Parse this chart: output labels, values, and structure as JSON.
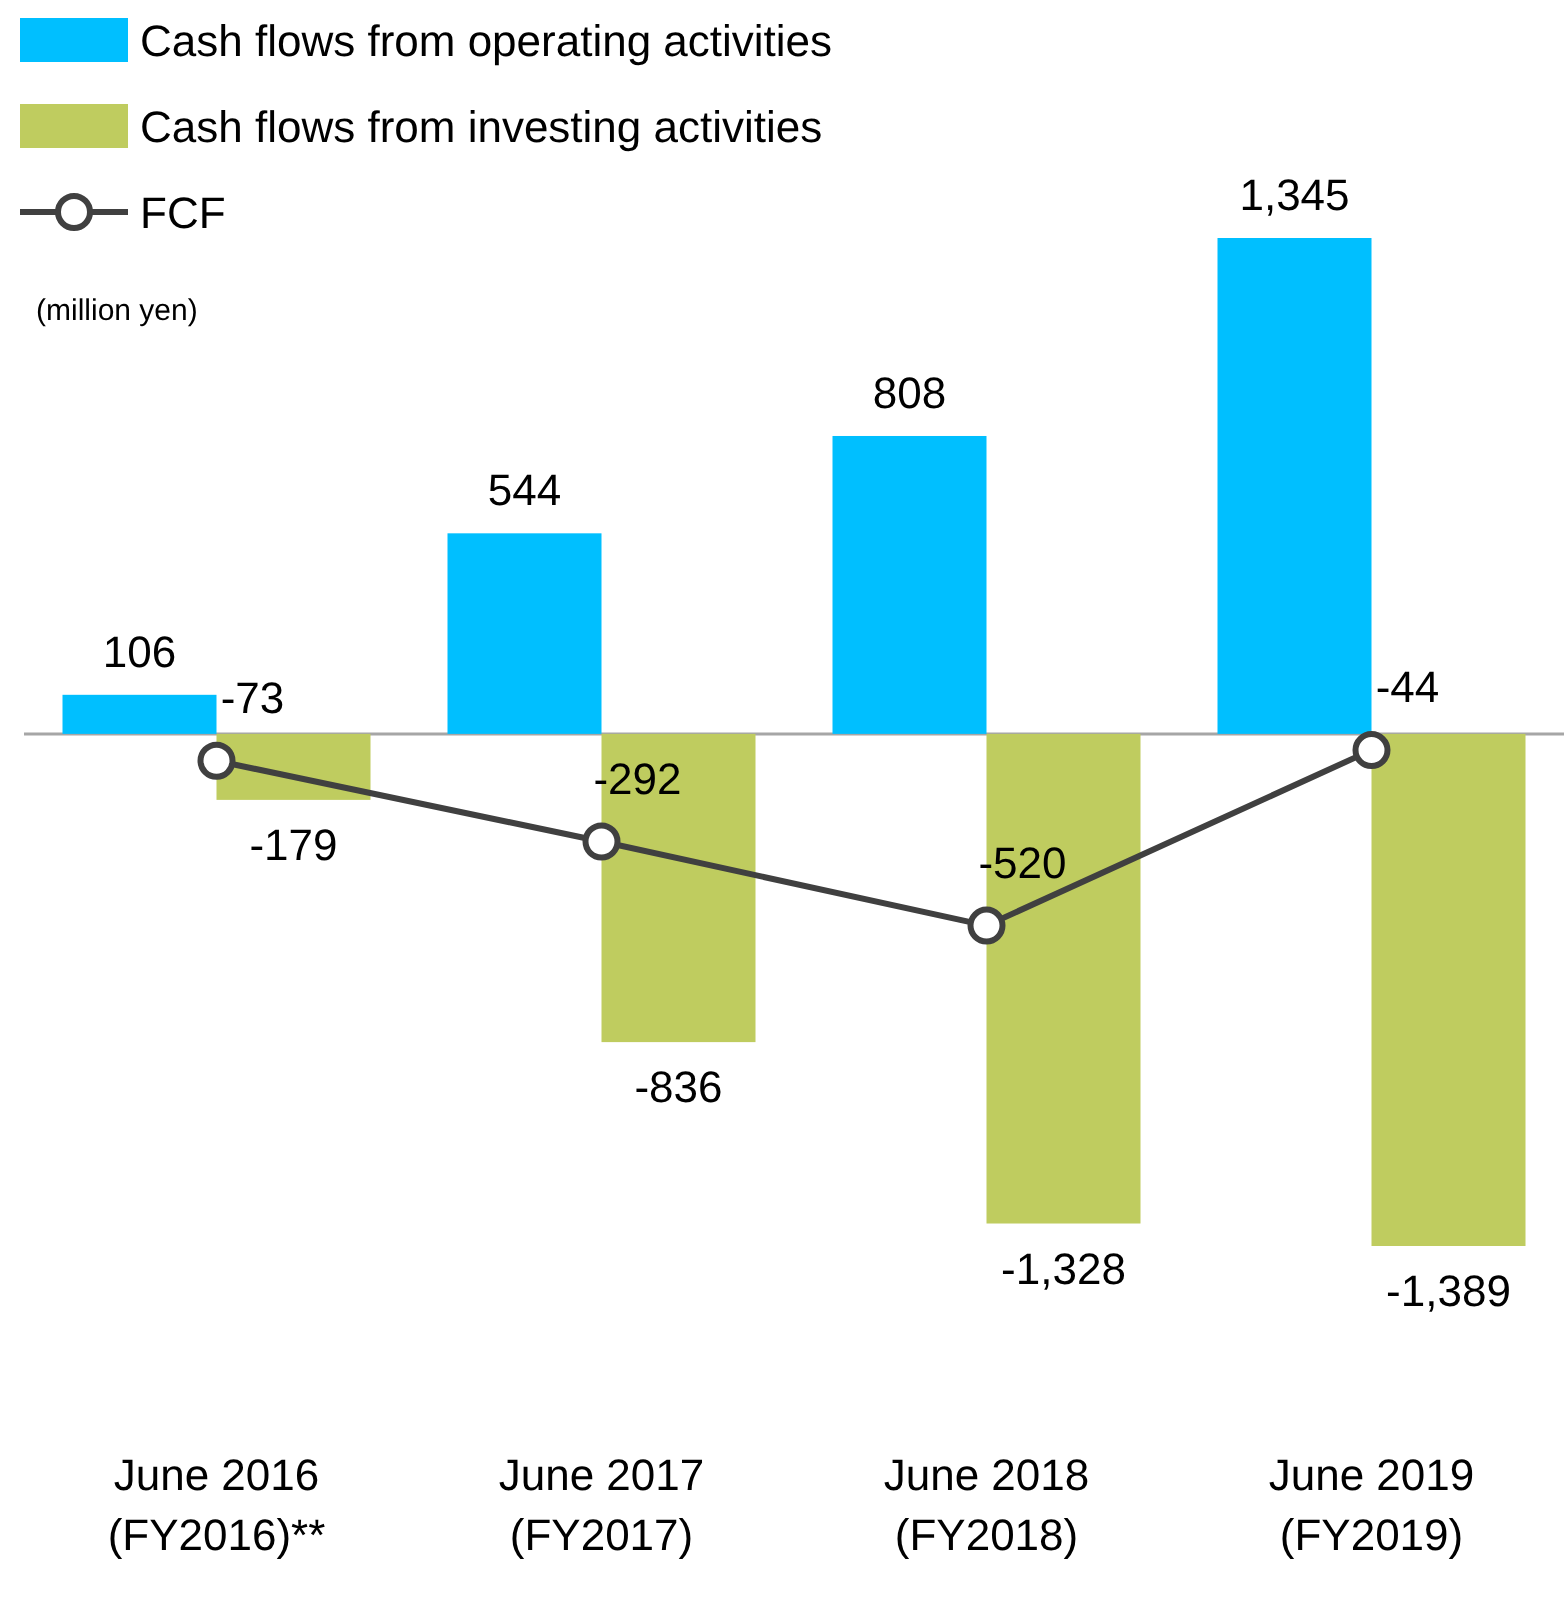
{
  "chart_data": {
    "type": "bar",
    "categories": [
      "June 2016\n(FY2016)**",
      "June 2017\n(FY2017)",
      "June 2018\n(FY2018)",
      "June 2019\n(FY2019)"
    ],
    "series": [
      {
        "name": "Cash flows from operating activities",
        "color": "#00bfff",
        "values": [
          106,
          544,
          808,
          1345
        ],
        "value_labels": [
          "106",
          "544",
          "808",
          "1,345"
        ]
      },
      {
        "name": "Cash flows from investing activities",
        "color": "#bfcc5f",
        "values": [
          -179,
          -836,
          -1328,
          -1389
        ],
        "value_labels": [
          "-179",
          "-836",
          "-1,328",
          "-1,389"
        ]
      },
      {
        "name": "FCF",
        "type": "line",
        "color": "#404040",
        "values": [
          -73,
          -292,
          -520,
          -44
        ],
        "value_labels": [
          "-73",
          "-292",
          "-520",
          "-44"
        ]
      }
    ],
    "legend": "top left",
    "marker": "circle",
    "annotations": [
      "(million yen)"
    ]
  }
}
